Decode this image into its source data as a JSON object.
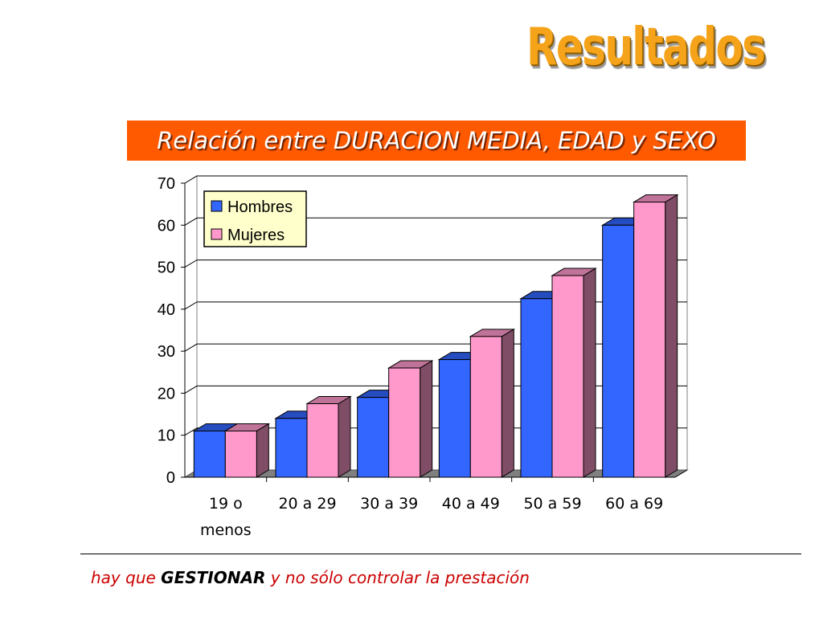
{
  "heading": "Resultados",
  "chart_data": {
    "type": "bar",
    "title": "Relación entre DURACION MEDIA, EDAD y SEXO",
    "categories": [
      "19 o menos",
      "20 a 29",
      "30 a 39",
      "40 a 49",
      "50 a 59",
      "60 a 69"
    ],
    "category_lines": [
      [
        "19 o",
        "menos"
      ],
      [
        "20 a 29"
      ],
      [
        "30 a 39"
      ],
      [
        "40 a 49"
      ],
      [
        "50 a 59"
      ],
      [
        "60 a 69"
      ]
    ],
    "series": [
      {
        "name": "Hombres",
        "color": "#3366ff",
        "values": [
          11,
          14,
          19,
          28,
          42.5,
          60
        ]
      },
      {
        "name": "Mujeres",
        "color": "#ff99cc",
        "values": [
          11,
          17.5,
          26,
          33.5,
          48,
          65.5
        ]
      }
    ],
    "ylim": [
      0,
      70
    ],
    "yticks": [
      0,
      10,
      20,
      30,
      40,
      50,
      60,
      70
    ],
    "grid": true,
    "legend_position": "top-left",
    "style": "3d-clustered"
  },
  "footer": {
    "prefix": "hay que ",
    "emphasis": "GESTIONAR",
    "suffix": "  y no sólo controlar la prestación"
  }
}
